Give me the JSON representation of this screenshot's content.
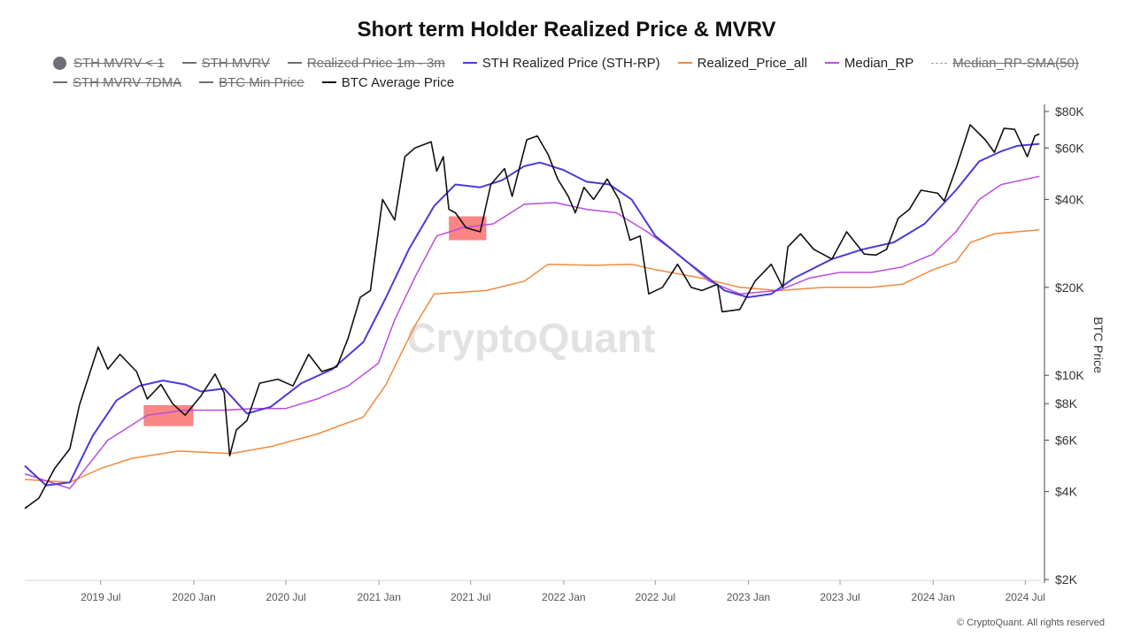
{
  "title": "Short term Holder Realized Price & MVRV",
  "legend": {
    "row1": [
      {
        "label": "STH MVRV < 1",
        "color": "#6e6e78",
        "marker": "dot",
        "enabled": false
      },
      {
        "label": "STH MVRV",
        "color": "#6e6e6e",
        "marker": "line",
        "enabled": false
      },
      {
        "label": "Realized Price 1m - 3m",
        "color": "#6e6e6e",
        "marker": "line",
        "enabled": false
      },
      {
        "label": "STH Realized Price (STH-RP)",
        "color": "#4b3bd6",
        "marker": "line",
        "enabled": true
      },
      {
        "label": "Realized_Price_all",
        "color": "#f08a3c",
        "marker": "line",
        "enabled": true
      },
      {
        "label": "Median_RP",
        "color": "#b84ee0",
        "marker": "line",
        "enabled": true
      },
      {
        "label": "Median_RP-SMA(50)",
        "color": "#9aa0a6",
        "marker": "dashed",
        "enabled": false
      }
    ],
    "row2": [
      {
        "label": "STH MVRV 7DMA",
        "color": "#6e6e6e",
        "marker": "line",
        "enabled": false
      },
      {
        "label": "BTC Min Price",
        "color": "#6e6e6e",
        "marker": "line",
        "enabled": false
      },
      {
        "label": "BTC Average Price",
        "color": "#111111",
        "marker": "line",
        "enabled": true
      }
    ]
  },
  "watermark": "CryptoQuant",
  "footer": "© CryptoQuant. All rights reserved",
  "chart_data": {
    "type": "line",
    "title": "Short term Holder Realized Price & MVRV",
    "xlabel": "",
    "ylabel": "BTC Price",
    "yscale": "log",
    "ylim": [
      2000,
      80000
    ],
    "xlim": [
      "2019-02-01",
      "2024-08-01"
    ],
    "x_ticks": [
      "2019 Jul",
      "2020 Jan",
      "2020 Jul",
      "2021 Jan",
      "2021 Jul",
      "2022 Jan",
      "2022 Jul",
      "2023 Jan",
      "2023 Jul",
      "2024 Jan",
      "2024 Jul"
    ],
    "x_tick_dates": [
      "2019-07-01",
      "2020-01-01",
      "2020-07-01",
      "2021-01-01",
      "2021-07-01",
      "2022-01-01",
      "2022-07-01",
      "2023-01-01",
      "2023-07-01",
      "2024-01-01",
      "2024-07-01"
    ],
    "y_ticks": [
      {
        "value": 80000,
        "label": "$80K"
      },
      {
        "value": 60000,
        "label": "$60K"
      },
      {
        "value": 40000,
        "label": "$40K"
      },
      {
        "value": 20000,
        "label": "$20K"
      },
      {
        "value": 10000,
        "label": "$10K"
      },
      {
        "value": 8000,
        "label": "$8K"
      },
      {
        "value": 6000,
        "label": "$6K"
      },
      {
        "value": 4000,
        "label": "$4K"
      },
      {
        "value": 2000,
        "label": "$2K"
      }
    ],
    "series": [
      {
        "name": "BTC Average Price",
        "color": "#111111",
        "width": 1.6,
        "x": [
          "2019-02-01",
          "2019-03-01",
          "2019-04-01",
          "2019-05-01",
          "2019-05-20",
          "2019-06-26",
          "2019-07-15",
          "2019-08-08",
          "2019-09-10",
          "2019-10-01",
          "2019-10-28",
          "2019-11-20",
          "2019-12-15",
          "2020-01-15",
          "2020-02-12",
          "2020-03-01",
          "2020-03-12",
          "2020-03-25",
          "2020-04-15",
          "2020-05-10",
          "2020-06-15",
          "2020-07-15",
          "2020-08-15",
          "2020-09-10",
          "2020-10-10",
          "2020-11-01",
          "2020-11-25",
          "2020-12-15",
          "2021-01-08",
          "2021-02-01",
          "2021-02-21",
          "2021-03-13",
          "2021-04-14",
          "2021-04-25",
          "2021-05-08",
          "2021-05-19",
          "2021-06-01",
          "2021-06-22",
          "2021-07-20",
          "2021-08-10",
          "2021-09-06",
          "2021-09-21",
          "2021-10-20",
          "2021-11-10",
          "2021-12-01",
          "2021-12-20",
          "2022-01-10",
          "2022-01-24",
          "2022-02-10",
          "2022-03-01",
          "2022-03-28",
          "2022-04-20",
          "2022-05-12",
          "2022-06-01",
          "2022-06-18",
          "2022-07-15",
          "2022-08-14",
          "2022-09-10",
          "2022-10-01",
          "2022-11-01",
          "2022-11-10",
          "2022-12-15",
          "2023-01-14",
          "2023-02-15",
          "2023-03-10",
          "2023-03-20",
          "2023-04-14",
          "2023-05-10",
          "2023-06-15",
          "2023-07-14",
          "2023-08-18",
          "2023-09-10",
          "2023-10-01",
          "2023-10-24",
          "2023-11-15",
          "2023-12-08",
          "2024-01-10",
          "2024-01-23",
          "2024-02-15",
          "2024-03-14",
          "2024-04-13",
          "2024-05-01",
          "2024-05-20",
          "2024-06-10",
          "2024-07-05",
          "2024-07-20",
          "2024-07-29"
        ],
        "values": [
          3500,
          3800,
          4800,
          5600,
          7900,
          12500,
          10500,
          11800,
          10300,
          8300,
          9300,
          8000,
          7300,
          8500,
          10100,
          8700,
          5300,
          6500,
          7000,
          9400,
          9700,
          9200,
          11800,
          10300,
          10700,
          13400,
          18500,
          19500,
          40000,
          34000,
          56000,
          60000,
          63000,
          50000,
          56000,
          37000,
          36000,
          32000,
          31000,
          45000,
          51000,
          41000,
          64000,
          66000,
          57000,
          47000,
          41000,
          36000,
          44000,
          40000,
          47000,
          40000,
          29000,
          30000,
          19000,
          20000,
          24000,
          20000,
          19500,
          20500,
          16500,
          16800,
          21000,
          24000,
          20000,
          27500,
          30500,
          27000,
          25000,
          31000,
          26000,
          25800,
          27000,
          34500,
          37000,
          43000,
          42000,
          39500,
          51000,
          72000,
          64000,
          58000,
          70000,
          69500,
          56000,
          66000,
          67000
        ]
      },
      {
        "name": "STH Realized Price (STH-RP)",
        "color": "#4b3bd6",
        "width": 2,
        "x": [
          "2019-02-01",
          "2019-03-15",
          "2019-05-01",
          "2019-06-15",
          "2019-08-01",
          "2019-09-15",
          "2019-11-01",
          "2019-12-15",
          "2020-01-15",
          "2020-03-01",
          "2020-04-15",
          "2020-06-01",
          "2020-08-01",
          "2020-10-01",
          "2020-12-01",
          "2021-01-15",
          "2021-03-01",
          "2021-04-20",
          "2021-06-01",
          "2021-07-20",
          "2021-09-01",
          "2021-10-15",
          "2021-11-15",
          "2021-12-31",
          "2022-02-15",
          "2022-04-01",
          "2022-05-15",
          "2022-07-01",
          "2022-09-01",
          "2022-11-15",
          "2022-12-31",
          "2023-02-15",
          "2023-04-01",
          "2023-06-15",
          "2023-08-15",
          "2023-10-15",
          "2023-12-15",
          "2024-02-15",
          "2024-04-01",
          "2024-05-15",
          "2024-06-15",
          "2024-07-29"
        ],
        "values": [
          4900,
          4200,
          4300,
          6200,
          8200,
          9200,
          9600,
          9300,
          8800,
          9000,
          7400,
          7800,
          9400,
          10500,
          13000,
          18500,
          27000,
          38000,
          45000,
          44000,
          46500,
          52000,
          53500,
          50500,
          46000,
          45000,
          40000,
          30000,
          24500,
          19500,
          18500,
          19000,
          21500,
          25000,
          27000,
          28500,
          33000,
          43000,
          54000,
          58500,
          61000,
          62000
        ]
      },
      {
        "name": "Median_RP",
        "color": "#b84ee0",
        "width": 1.5,
        "x": [
          "2019-02-01",
          "2019-05-01",
          "2019-07-15",
          "2019-10-01",
          "2019-12-15",
          "2020-03-01",
          "2020-05-01",
          "2020-07-01",
          "2020-09-01",
          "2020-11-01",
          "2020-12-31",
          "2021-02-01",
          "2021-03-15",
          "2021-04-25",
          "2021-06-15",
          "2021-08-15",
          "2021-10-15",
          "2021-12-15",
          "2022-02-15",
          "2022-04-15",
          "2022-06-15",
          "2022-08-15",
          "2022-10-15",
          "2022-12-15",
          "2023-03-01",
          "2023-05-01",
          "2023-07-01",
          "2023-09-01",
          "2023-11-01",
          "2024-01-01",
          "2024-02-15",
          "2024-04-01",
          "2024-05-15",
          "2024-07-29"
        ],
        "values": [
          4600,
          4100,
          6000,
          7300,
          7600,
          7600,
          7700,
          7700,
          8300,
          9200,
          11000,
          15500,
          22000,
          30000,
          32000,
          33000,
          38500,
          39000,
          37000,
          36000,
          31000,
          26000,
          21000,
          19000,
          19500,
          21500,
          22500,
          22500,
          23500,
          26000,
          31000,
          40000,
          45000,
          48000
        ]
      },
      {
        "name": "Realized_Price_all",
        "color": "#f08a3c",
        "width": 1.5,
        "x": [
          "2019-02-01",
          "2019-05-01",
          "2019-07-01",
          "2019-09-01",
          "2019-12-01",
          "2020-03-15",
          "2020-06-01",
          "2020-09-01",
          "2020-12-01",
          "2021-01-15",
          "2021-02-15",
          "2021-03-15",
          "2021-04-20",
          "2021-06-01",
          "2021-08-01",
          "2021-10-15",
          "2021-12-01",
          "2022-03-01",
          "2022-05-15",
          "2022-07-01",
          "2022-10-01",
          "2022-12-15",
          "2023-03-01",
          "2023-06-01",
          "2023-09-01",
          "2023-11-01",
          "2024-01-01",
          "2024-02-15",
          "2024-03-15",
          "2024-05-01",
          "2024-07-29"
        ],
        "values": [
          4400,
          4300,
          4800,
          5200,
          5500,
          5400,
          5700,
          6300,
          7200,
          9300,
          12000,
          15000,
          19000,
          19200,
          19500,
          21000,
          24000,
          23800,
          24000,
          23000,
          21500,
          20000,
          19500,
          20000,
          20000,
          20500,
          23000,
          24500,
          28500,
          30500,
          31500
        ]
      }
    ],
    "highlights": [
      {
        "start": "2019-09-24",
        "end": "2019-12-31",
        "low": 6700,
        "high": 7900,
        "label": "STH MVRV < 1",
        "color": "#f87878"
      },
      {
        "start": "2021-05-19",
        "end": "2021-08-01",
        "low": 29000,
        "high": 35000,
        "label": "STH MVRV < 1",
        "color": "#f87878"
      }
    ]
  },
  "colors": {
    "axis": "#444444",
    "tick": "#555555",
    "watermark": "#e2e2e2",
    "highlight": "#f87878"
  }
}
